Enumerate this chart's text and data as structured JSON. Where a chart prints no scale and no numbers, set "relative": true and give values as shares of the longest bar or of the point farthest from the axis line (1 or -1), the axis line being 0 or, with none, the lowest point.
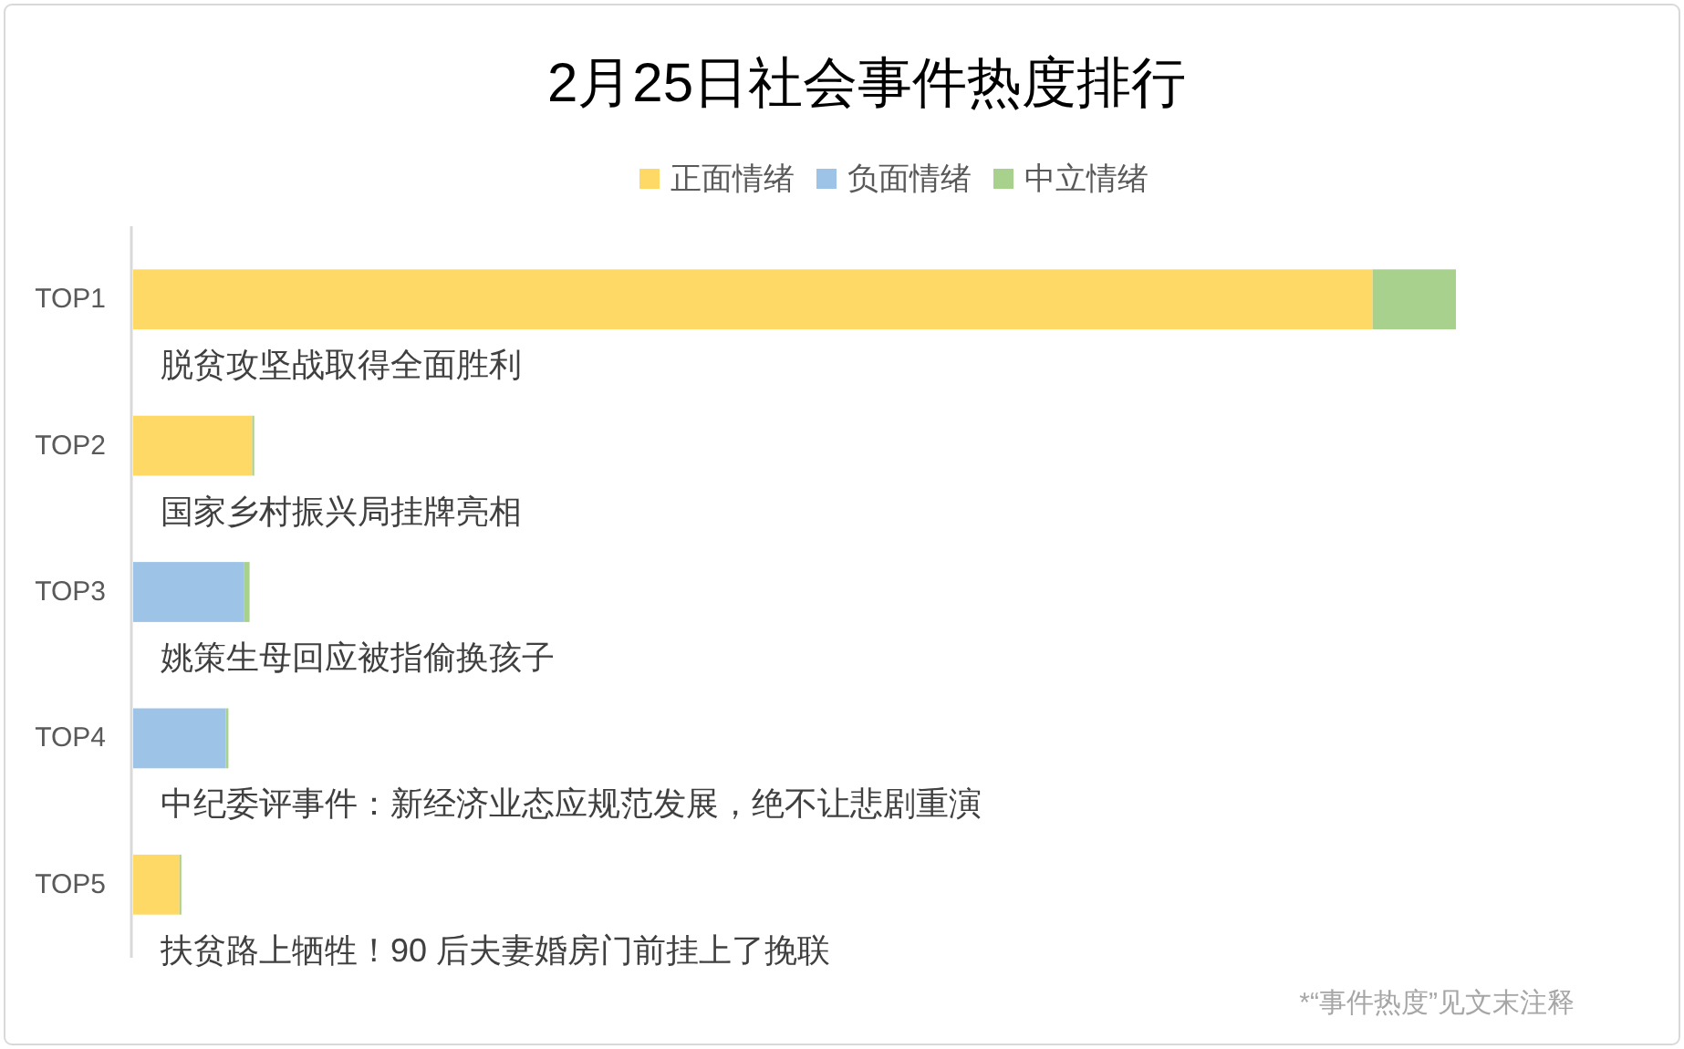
{
  "chart_data": {
    "type": "bar",
    "title": "2月25日社会事件热度排行",
    "orientation": "horizontal",
    "stacked": true,
    "relative": true,
    "categories": [
      "TOP1",
      "TOP2",
      "TOP3",
      "TOP4",
      "TOP5"
    ],
    "series": [
      {
        "name": "正面情绪",
        "color": "#ffd966",
        "values": [
          0.937,
          0.09,
          0,
          0,
          0.035
        ]
      },
      {
        "name": "负面情绪",
        "color": "#9dc3e6",
        "values": [
          0,
          0,
          0.084,
          0.07,
          0
        ]
      },
      {
        "name": "中立情绪",
        "color": "#a9d18e",
        "values": [
          0.063,
          0.0015,
          0.004,
          0.002,
          0.0014
        ]
      }
    ],
    "legend": "top",
    "annotations": [
      "脱贫攻坚战取得全面胜利",
      "国家乡村振兴局挂牌亮相",
      "姚策生母回应被指偷换孩子",
      "中纪委评事件：新经济业态应规范发展，绝不让悲剧重演",
      "扶贫路上牺牲！90 后夫妻婚房门前挂上了挽联",
      "*“事件热度”见文末注释"
    ]
  }
}
